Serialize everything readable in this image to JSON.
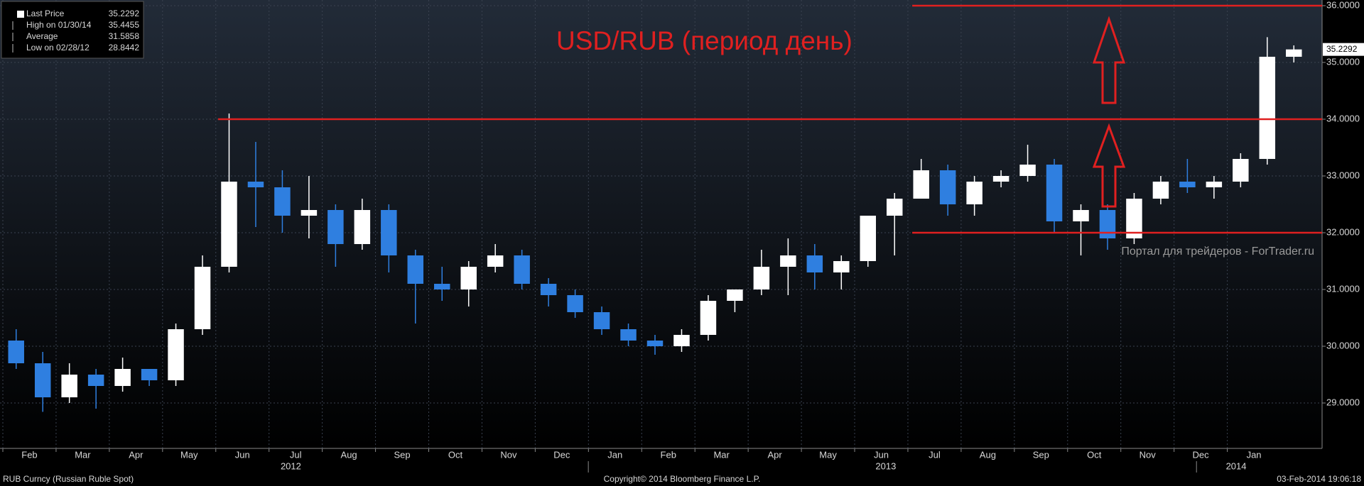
{
  "chart_data": {
    "type": "candlestick",
    "title": "USD/RUB (период день)",
    "watermark": "Портал для трейдеров - ForTrader.ru",
    "legend": [
      {
        "label": "Last Price",
        "value": 35.2292
      },
      {
        "label": "High on 01/30/14",
        "value": 35.4455
      },
      {
        "label": "Average",
        "value": 31.5858
      },
      {
        "label": "Low on 02/28/12",
        "value": 28.8442
      }
    ],
    "last_price": 35.2292,
    "up_color": "#ffffff",
    "down_color": "#2f7fe0",
    "level_color": "#e02020",
    "levels": [
      36,
      34,
      32
    ],
    "categories": [
      "Feb",
      null,
      "Mar",
      null,
      "Apr",
      null,
      "May",
      null,
      "Jun",
      null,
      "Jul",
      null,
      "Aug",
      null,
      "Sep",
      null,
      "Oct",
      null,
      "Nov",
      null,
      "Dec",
      null,
      "Jan",
      null,
      "Feb",
      null,
      "Mar",
      null,
      "Apr",
      null,
      "May",
      null,
      "Jun",
      null,
      "Jul",
      null,
      "Aug",
      null,
      "Sep",
      null,
      "Oct",
      null,
      "Nov",
      null,
      "Dec",
      null,
      "Jan",
      null,
      null
    ],
    "years": [
      "2012",
      "2013",
      "2014"
    ],
    "open": [
      30.1,
      29.7,
      29.1,
      29.5,
      29.3,
      29.6,
      29.4,
      30.3,
      31.4,
      32.9,
      32.8,
      32.3,
      32.4,
      31.8,
      32.4,
      31.6,
      31.1,
      31.0,
      31.4,
      31.6,
      31.1,
      30.9,
      30.6,
      30.3,
      30.1,
      30.0,
      30.2,
      30.8,
      31.0,
      31.4,
      31.6,
      31.3,
      31.5,
      32.3,
      32.6,
      33.1,
      32.5,
      32.9,
      33.0,
      33.2,
      32.2,
      32.4,
      31.9,
      32.6,
      32.9,
      32.8,
      32.9,
      33.3,
      35.1
    ],
    "high": [
      30.3,
      29.9,
      29.7,
      29.6,
      29.8,
      29.6,
      30.4,
      31.6,
      34.1,
      33.6,
      33.1,
      33.0,
      32.5,
      32.6,
      32.5,
      31.7,
      31.4,
      31.5,
      31.8,
      31.7,
      31.2,
      31.0,
      30.7,
      30.4,
      30.2,
      30.3,
      30.9,
      31.0,
      31.7,
      31.9,
      31.8,
      31.6,
      32.3,
      32.7,
      33.3,
      33.2,
      33.0,
      33.1,
      33.55,
      33.3,
      32.5,
      32.5,
      32.7,
      33.0,
      33.3,
      33.0,
      33.4,
      35.4455,
      35.3
    ],
    "low": [
      29.6,
      28.8442,
      29.0,
      28.9,
      29.2,
      29.3,
      29.3,
      30.2,
      31.3,
      32.1,
      32.0,
      31.9,
      31.4,
      31.7,
      31.3,
      30.4,
      30.8,
      30.7,
      31.3,
      31.0,
      30.7,
      30.5,
      30.2,
      30.0,
      29.85,
      29.9,
      30.1,
      30.6,
      30.9,
      30.9,
      31.0,
      31.0,
      31.4,
      31.6,
      32.6,
      32.3,
      32.3,
      32.8,
      32.9,
      32.0,
      31.6,
      31.7,
      31.8,
      32.5,
      32.7,
      32.6,
      32.8,
      33.2,
      35.0
    ],
    "close": [
      29.7,
      29.1,
      29.5,
      29.3,
      29.6,
      29.4,
      30.3,
      31.4,
      32.9,
      32.8,
      32.3,
      32.4,
      31.8,
      32.4,
      31.6,
      31.1,
      31.0,
      31.4,
      31.6,
      31.1,
      30.9,
      30.6,
      30.3,
      30.1,
      30.0,
      30.2,
      30.8,
      31.0,
      31.4,
      31.6,
      31.3,
      31.5,
      32.3,
      32.6,
      33.1,
      32.5,
      32.9,
      33.0,
      33.2,
      32.2,
      32.4,
      31.9,
      32.6,
      32.9,
      32.8,
      32.9,
      33.3,
      35.1,
      35.2292
    ],
    "ylim": [
      28.2,
      36.1
    ],
    "yticks": [
      {
        "value": 29,
        "label": "29.0000"
      },
      {
        "value": 30,
        "label": "30.0000"
      },
      {
        "value": 31,
        "label": "31.0000"
      },
      {
        "value": 32,
        "label": "32.0000"
      },
      {
        "value": 33,
        "label": "33.0000"
      },
      {
        "value": 34,
        "label": "34.0000"
      },
      {
        "value": 35,
        "label": "35.0000"
      },
      {
        "value": 36,
        "label": "36.0000"
      }
    ],
    "grid": true,
    "footer": {
      "left": "RUB Curncy (Russian Ruble Spot)",
      "center": "Copyright© 2014 Bloomberg Finance L.P.",
      "right": "03-Feb-2014 19:06:18"
    }
  }
}
